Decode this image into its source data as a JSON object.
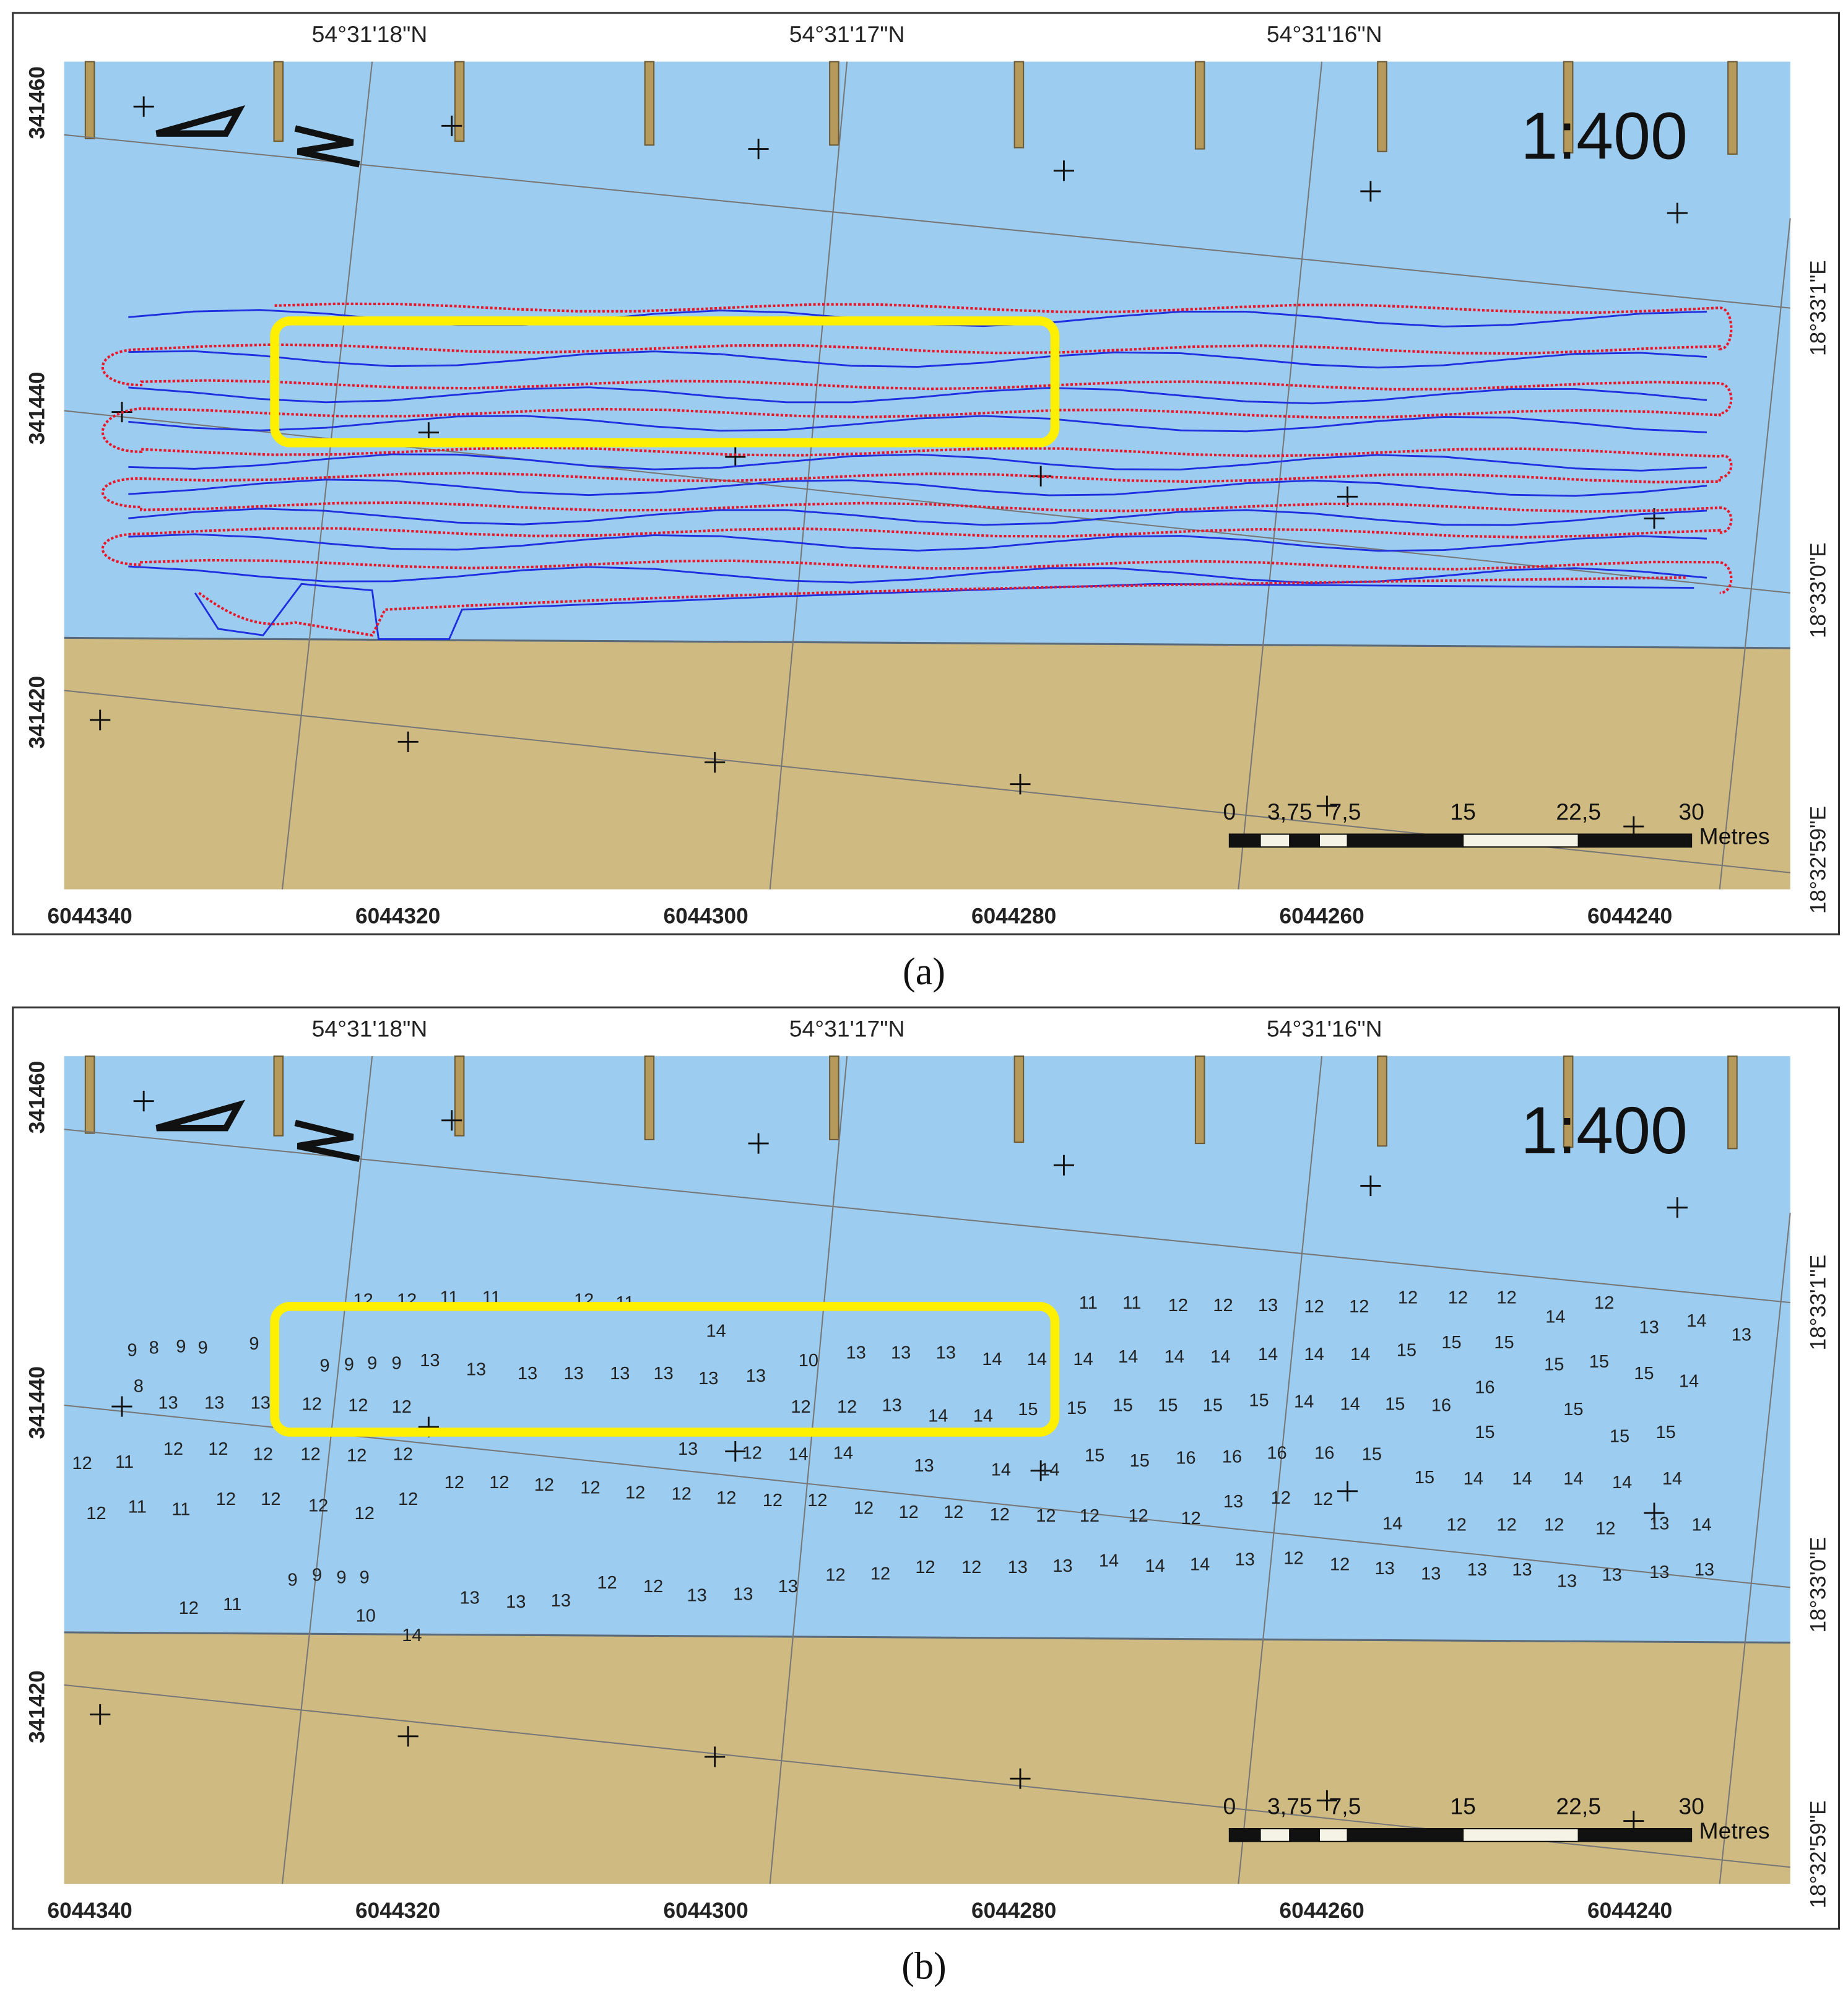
{
  "panels": [
    {
      "caption": "(a)",
      "top_labels": [
        "54°31'18\"N",
        "54°31'17\"N",
        "54°31'16\"N"
      ],
      "left_labels": [
        "341460",
        "341440",
        "341420"
      ],
      "bottom_labels": [
        "6044340",
        "6044320",
        "6044300",
        "6044280",
        "6044260",
        "6044240"
      ],
      "right_labels": [
        "18°33'1\"E",
        "18°33'0\"E",
        "18°32'59\"E"
      ],
      "scale_ratio": "1:400",
      "scale_bar": {
        "ticks": [
          "0",
          "3,75",
          "7,5",
          "15",
          "22,5",
          "30"
        ],
        "unit": "Metres"
      }
    },
    {
      "caption": "(b)",
      "top_labels": [
        "54°31'18\"N",
        "54°31'17\"N",
        "54°31'16\"N"
      ],
      "left_labels": [
        "341460",
        "341440",
        "341420"
      ],
      "bottom_labels": [
        "6044340",
        "6044320",
        "6044300",
        "6044280",
        "6044260",
        "6044240"
      ],
      "right_labels": [
        "18°33'1\"E",
        "18°33'0\"E",
        "18°32'59\"E"
      ],
      "scale_ratio": "1:400",
      "scale_bar": {
        "ticks": [
          "0",
          "3,75",
          "7,5",
          "15",
          "22,5",
          "30"
        ],
        "unit": "Metres"
      }
    }
  ],
  "soundings": [
    11,
    11,
    12,
    12,
    13,
    12,
    12,
    12,
    12,
    12,
    12,
    12,
    12,
    11,
    11,
    12,
    11,
    9,
    8,
    9,
    9,
    9,
    14,
    14,
    13,
    14,
    13,
    9,
    9,
    9,
    9,
    13,
    13,
    13,
    13,
    13,
    13,
    13,
    13,
    10,
    13,
    13,
    13,
    14,
    14,
    14,
    14,
    14,
    14,
    14,
    14,
    14,
    15,
    15,
    15,
    15,
    15,
    15,
    14,
    8,
    13,
    13,
    13,
    12,
    12,
    12,
    12,
    12,
    13,
    14,
    14,
    15,
    15,
    15,
    15,
    15,
    15,
    14,
    14,
    15,
    16,
    16,
    15,
    12,
    11,
    12,
    12,
    12,
    12,
    12,
    12,
    13,
    12,
    14,
    14,
    13,
    14,
    14,
    15,
    15,
    16,
    16,
    16,
    16,
    15,
    15,
    15,
    15,
    12,
    12,
    12,
    12,
    12,
    12,
    12,
    12,
    12,
    12,
    12,
    12,
    12,
    12,
    12,
    12,
    12,
    13,
    12,
    12,
    15,
    14,
    14,
    14,
    14,
    14,
    12,
    11,
    11,
    12,
    12,
    12,
    12,
    12,
    14,
    12,
    12,
    12,
    12,
    13,
    14,
    9,
    9,
    9,
    9,
    13,
    13,
    13,
    12,
    12,
    13,
    13,
    13,
    12,
    12,
    12,
    12,
    13,
    13,
    14,
    14,
    14,
    13,
    12,
    12,
    13,
    13,
    13,
    13,
    13,
    13,
    13,
    13,
    12,
    11,
    10,
    14
  ]
}
